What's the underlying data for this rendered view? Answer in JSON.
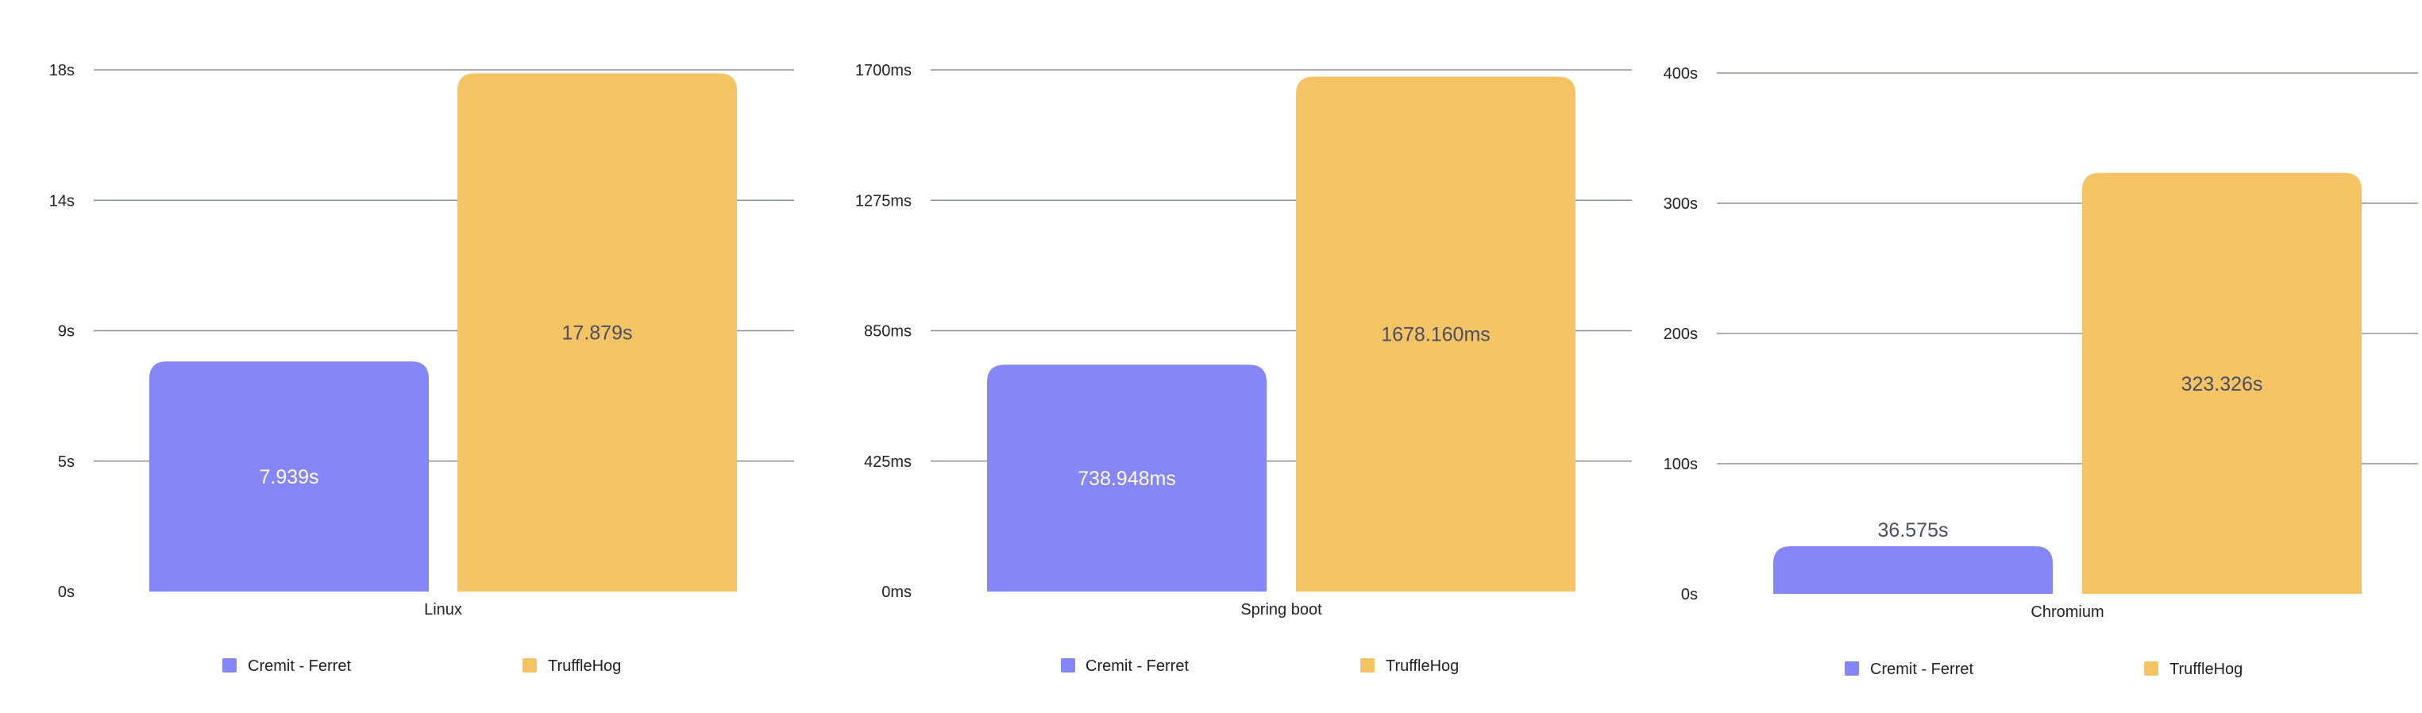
{
  "colors": {
    "cremit_ferret": "#8586F7",
    "trufflehog": "#F4C464",
    "gridline": "#8E90A6",
    "label_inside": "#FFFFFF",
    "label_dark": "#4A4D64"
  },
  "legend": {
    "series": [
      {
        "name": "Cremit - Ferret",
        "color": "#8586F7"
      },
      {
        "name": "TruffleHog",
        "color": "#F4C464"
      }
    ]
  },
  "chart_data": [
    {
      "type": "bar",
      "categories": [
        "Linux"
      ],
      "series": [
        {
          "name": "Cremit - Ferret",
          "values": [
            7.939
          ],
          "value_labels": [
            "7.939s"
          ],
          "color": "#8586F7"
        },
        {
          "name": "TruffleHog",
          "values": [
            17.879
          ],
          "value_labels": [
            "17.879s"
          ],
          "color": "#F4C464"
        }
      ],
      "yticks": [
        0,
        4.5,
        9,
        13.5,
        18
      ],
      "ytick_labels": [
        "0s",
        "5s",
        "9s",
        "14s",
        "18s"
      ],
      "ylim": [
        0,
        18
      ],
      "grid": true,
      "legend": "bottom"
    },
    {
      "type": "bar",
      "categories": [
        "Spring boot"
      ],
      "series": [
        {
          "name": "Cremit - Ferret",
          "values": [
            738.948
          ],
          "value_labels": [
            "738.948ms"
          ],
          "color": "#8586F7"
        },
        {
          "name": "TruffleHog",
          "values": [
            1678.16
          ],
          "value_labels": [
            "1678.160ms"
          ],
          "color": "#F4C464"
        }
      ],
      "yticks": [
        0,
        425,
        850,
        1275,
        1700
      ],
      "ytick_labels": [
        "0ms",
        "425ms",
        "850ms",
        "1275ms",
        "1700ms"
      ],
      "ylim": [
        0,
        1700
      ],
      "grid": true,
      "legend": "bottom"
    },
    {
      "type": "bar",
      "categories": [
        "Chromium"
      ],
      "series": [
        {
          "name": "Cremit - Ferret",
          "values": [
            36.575
          ],
          "value_labels": [
            "36.575s"
          ],
          "color": "#8586F7"
        },
        {
          "name": "TruffleHog",
          "values": [
            323.326
          ],
          "value_labels": [
            "323.326s"
          ],
          "color": "#F4C464"
        }
      ],
      "yticks": [
        0,
        100,
        200,
        300,
        400
      ],
      "ytick_labels": [
        "0s",
        "100s",
        "200s",
        "300s",
        "400s"
      ],
      "ylim": [
        0,
        400
      ],
      "grid": true,
      "legend": "bottom"
    }
  ]
}
